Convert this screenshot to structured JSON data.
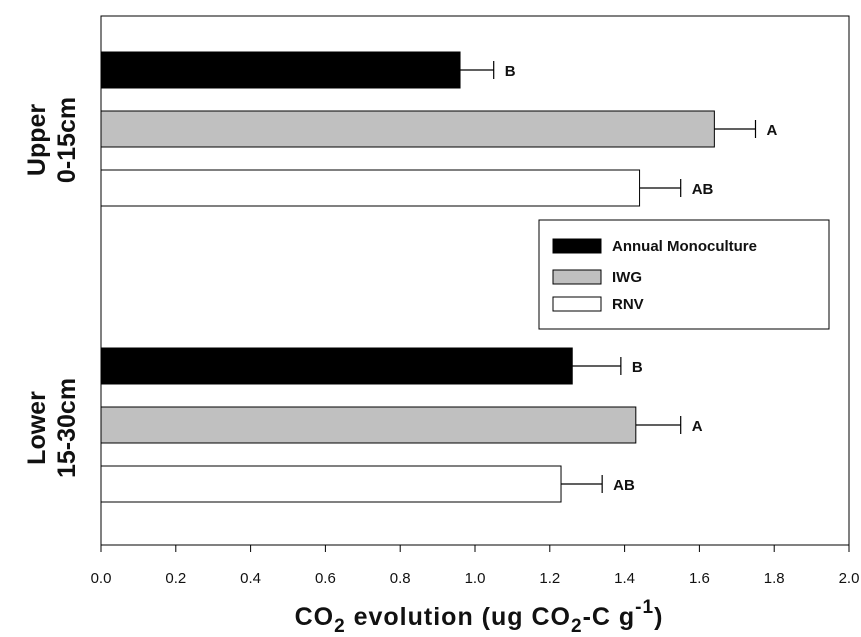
{
  "chart_data": {
    "type": "bar",
    "orientation": "horizontal",
    "groups": [
      {
        "label_line1": "Upper",
        "label_line2": "0-15cm"
      },
      {
        "label_line1": "Lower",
        "label_line2": "15-30cm"
      }
    ],
    "series": [
      {
        "name": "Annual Monoculture",
        "color": "#000000",
        "values": [
          0.96,
          1.26
        ],
        "errors": [
          0.09,
          0.13
        ],
        "letters": [
          "B",
          "B"
        ]
      },
      {
        "name": "IWG",
        "color": "#c0c0c0",
        "values": [
          1.64,
          1.43
        ],
        "errors": [
          0.11,
          0.12
        ],
        "letters": [
          "A",
          "A"
        ]
      },
      {
        "name": "RNV",
        "color": "#ffffff",
        "values": [
          1.44,
          1.23
        ],
        "errors": [
          0.11,
          0.11
        ],
        "letters": [
          "AB",
          "AB"
        ]
      }
    ],
    "xlim": [
      0.0,
      2.0
    ],
    "xticks": [
      "0.0",
      "0.2",
      "0.4",
      "0.6",
      "0.8",
      "1.0",
      "1.2",
      "1.4",
      "1.6",
      "1.8",
      "2.0"
    ],
    "xlabel": {
      "part1": "CO",
      "sub1": "2",
      "part2": " evolution (ug CO",
      "sub2": "2",
      "part3": "-C g",
      "sup": "-1",
      "part4": ")"
    },
    "legend_position": "right-middle",
    "grid": false
  }
}
